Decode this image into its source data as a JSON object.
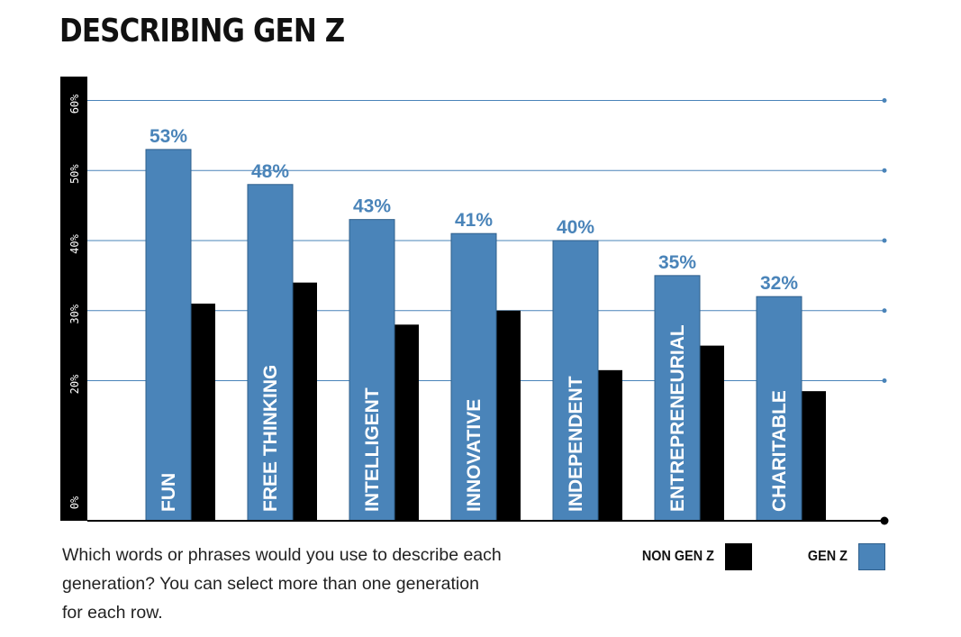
{
  "colors": {
    "gen_z": "#4a84b9",
    "non_gen_z": "#000000",
    "grid": "#4a84b9",
    "value_label": "#4a84b9"
  },
  "caption": "Which words or phrases would you use to describe each generation? You can select more than one generation for each row.",
  "chart_data": {
    "type": "bar",
    "title": "DESCRIBING GEN Z",
    "xlabel": "",
    "ylabel": "",
    "ylim": [
      0,
      53.5
    ],
    "yticks": [
      0,
      20,
      30,
      40,
      50,
      60
    ],
    "ytick_labels": [
      "0%",
      "20%",
      "30%",
      "40%",
      "50%",
      "60%"
    ],
    "grid": true,
    "legend_position": "bottom-right",
    "categories": [
      "FUN",
      "FREE THINKING",
      "INTELLIGENT",
      "INNOVATIVE",
      "INDEPENDENT",
      "ENTREPRENEURIAL",
      "CHARITABLE"
    ],
    "series": [
      {
        "name": "GEN Z",
        "values": [
          53,
          48,
          43,
          41,
          40,
          35,
          32
        ],
        "data_labels": [
          "53%",
          "48%",
          "43%",
          "41%",
          "40%",
          "35%",
          "32%"
        ]
      },
      {
        "name": "NON GEN Z",
        "values": [
          31,
          34,
          28,
          30,
          21.5,
          25,
          18.5
        ]
      }
    ]
  }
}
